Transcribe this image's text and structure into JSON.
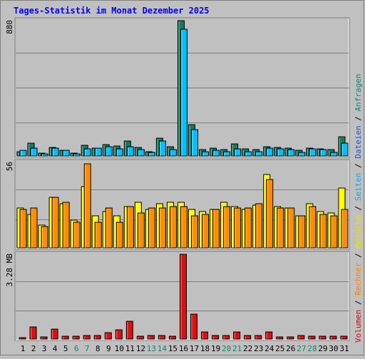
{
  "title": "Tages-Statistik im Monat Dezember 2025",
  "legend": [
    {
      "label": "Volumen",
      "color": "#dd0000"
    },
    {
      "label": "Rechner",
      "color": "#ff8000"
    },
    {
      "label": "Besuche",
      "color": "#e5e500"
    },
    {
      "label": "Seiten",
      "color": "#1aa3d8"
    },
    {
      "label": "Dateien",
      "color": "#1f57c7"
    },
    {
      "label": "Anfragen",
      "color": "#12846d"
    }
  ],
  "legend_separator": "/",
  "colors": {
    "background": "#c0c0c0",
    "title": "#0000ff",
    "anfragen_fill": "#1a7a5e",
    "dateien_fill": "#00c0ff",
    "besuche_fill": "#ffff00",
    "rechner_fill": "#ff8c00",
    "volumen_fill": "#dd1010",
    "weekend_day": "#12846d",
    "weekday_day": "#000000"
  },
  "chart_data": [
    {
      "type": "bar",
      "title": "Anfragen / Dateien",
      "ylabel": "880",
      "ylim": [
        0,
        880
      ],
      "categories": [
        "1",
        "2",
        "3",
        "4",
        "5",
        "6",
        "7",
        "8",
        "9",
        "10",
        "11",
        "12",
        "13",
        "14",
        "15",
        "16",
        "17",
        "18",
        "19",
        "20",
        "21",
        "22",
        "23",
        "24",
        "25",
        "26",
        "27",
        "28",
        "29",
        "30",
        "31"
      ],
      "weekend": [
        6,
        7,
        13,
        14,
        20,
        21,
        27,
        28
      ],
      "series": [
        {
          "name": "Anfragen",
          "values": [
            30,
            85,
            20,
            55,
            35,
            20,
            70,
            50,
            75,
            65,
            95,
            55,
            30,
            115,
            60,
            880,
            205,
            40,
            50,
            40,
            80,
            45,
            40,
            60,
            55,
            50,
            35,
            50,
            45,
            40,
            125
          ]
        },
        {
          "name": "Dateien",
          "values": [
            35,
            50,
            15,
            50,
            35,
            15,
            45,
            50,
            60,
            45,
            60,
            40,
            25,
            95,
            40,
            825,
            170,
            30,
            35,
            30,
            45,
            30,
            30,
            50,
            45,
            40,
            25,
            45,
            40,
            25,
            85
          ]
        }
      ]
    },
    {
      "type": "bar",
      "ylabel": "56",
      "ylim": [
        0,
        56
      ],
      "categories": [
        "1",
        "2",
        "3",
        "4",
        "5",
        "6",
        "7",
        "8",
        "9",
        "10",
        "11",
        "12",
        "13",
        "14",
        "15",
        "16",
        "17",
        "18",
        "19",
        "20",
        "21",
        "22",
        "23",
        "24",
        "25",
        "26",
        "27",
        "28",
        "29",
        "30",
        "31"
      ],
      "series": [
        {
          "name": "Besuche",
          "values": [
            26,
            22,
            15,
            33,
            29,
            18,
            40,
            21,
            24,
            21,
            27,
            30,
            25,
            29,
            30,
            30,
            25,
            24,
            25,
            30,
            27,
            25,
            28,
            48,
            27,
            26,
            21,
            29,
            24,
            23,
            39
          ]
        },
        {
          "name": "Rechner",
          "values": [
            25,
            26,
            14,
            33,
            30,
            17,
            55,
            17,
            26,
            17,
            27,
            23,
            26,
            26,
            27,
            27,
            21,
            22,
            25,
            27,
            26,
            26,
            29,
            45,
            26,
            26,
            21,
            27,
            22,
            21,
            25
          ]
        }
      ]
    },
    {
      "type": "bar",
      "ylabel": "3.28 MB",
      "ylim": [
        0,
        3.28
      ],
      "categories": [
        "1",
        "2",
        "3",
        "4",
        "5",
        "6",
        "7",
        "8",
        "9",
        "10",
        "11",
        "12",
        "13",
        "14",
        "15",
        "16",
        "17",
        "18",
        "19",
        "20",
        "21",
        "22",
        "23",
        "24",
        "25",
        "26",
        "27",
        "28",
        "29",
        "30",
        "31"
      ],
      "series": [
        {
          "name": "Volumen",
          "values": [
            0.06,
            0.46,
            0.07,
            0.38,
            0.1,
            0.1,
            0.13,
            0.13,
            0.25,
            0.35,
            0.68,
            0.1,
            0.15,
            0.13,
            0.1,
            3.28,
            0.96,
            0.27,
            0.13,
            0.13,
            0.28,
            0.13,
            0.13,
            0.27,
            0.08,
            0.08,
            0.15,
            0.12,
            0.1,
            0.1,
            0.1
          ]
        }
      ]
    }
  ]
}
